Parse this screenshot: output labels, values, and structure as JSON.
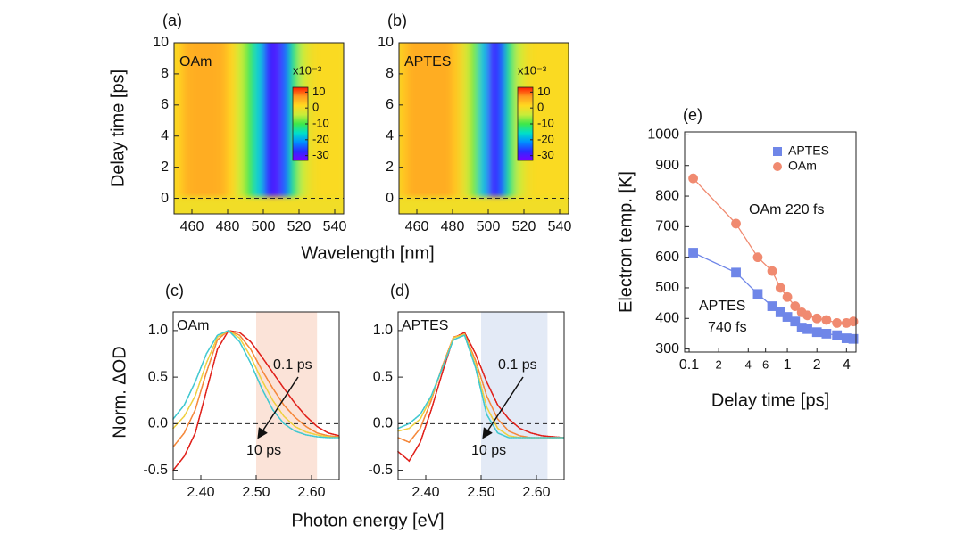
{
  "chart_data": [
    {
      "type": "heatmap",
      "panel": "(a)",
      "label": "OAm",
      "xlabel": "Wavelength [nm]",
      "ylabel": "Delay time [ps]",
      "x": [
        452.5,
        457.5,
        462.5,
        467.5,
        472.5,
        477.5,
        482.5,
        487.5,
        492.5,
        497.5,
        502.5,
        507.5,
        512.5,
        517.5,
        522.5,
        527.5,
        532.5,
        537.5,
        542.5
      ],
      "values": [
        2,
        5,
        5.5,
        5.5,
        5.5,
        5,
        2,
        -4,
        -10,
        -17,
        -27,
        -30,
        -24,
        -12,
        -4,
        0,
        1,
        1,
        1
      ],
      "xlim": [
        450,
        545
      ],
      "xticks": [
        460,
        480,
        500,
        520,
        540
      ],
      "ylim": [
        -1,
        10
      ],
      "yticks": [
        0,
        2,
        4,
        6,
        8,
        10
      ],
      "zlim": [
        -33,
        13
      ],
      "zticks": [
        10,
        0,
        -10,
        -20,
        -30
      ],
      "colorbar_unit": "x10⁻³",
      "colormap": [
        "#7a00ff",
        "#2b2bff",
        "#0090ff",
        "#00e0c8",
        "#3ee84a",
        "#c8ec3a",
        "#ffd820",
        "#ff9a20",
        "#ff1a00"
      ],
      "zero_line": true
    },
    {
      "type": "heatmap",
      "panel": "(b)",
      "label": "APTES",
      "x": [
        452.5,
        457.5,
        462.5,
        467.5,
        472.5,
        477.5,
        482.5,
        487.5,
        492.5,
        497.5,
        502.5,
        507.5,
        512.5,
        517.5,
        522.5,
        527.5,
        532.5,
        537.5,
        542.5
      ],
      "values": [
        3,
        5.5,
        5.5,
        5.5,
        5.5,
        5.5,
        3,
        -2,
        -8,
        -18,
        -29,
        -25,
        -12,
        -4,
        0,
        1,
        1,
        1,
        1
      ],
      "xlim": [
        450,
        545
      ],
      "xticks": [
        460,
        480,
        500,
        520,
        540
      ],
      "ylim": [
        -1,
        10
      ],
      "yticks": [
        0,
        2,
        4,
        6,
        8,
        10
      ],
      "zlim": [
        -33,
        13
      ],
      "zticks": [
        10,
        0,
        -10,
        -20,
        -30
      ],
      "colorbar_unit": "x10⁻³",
      "colormap": [
        "#7a00ff",
        "#2b2bff",
        "#0090ff",
        "#00e0c8",
        "#3ee84a",
        "#c8ec3a",
        "#ffd820",
        "#ff9a20",
        "#ff1a00"
      ],
      "zero_line": true
    },
    {
      "type": "line",
      "panel": "(c)",
      "label": "OAm",
      "xlabel": "Photon energy [eV]",
      "ylabel": "Norm. ΔOD",
      "x": [
        2.35,
        2.37,
        2.39,
        2.41,
        2.43,
        2.45,
        2.47,
        2.49,
        2.51,
        2.53,
        2.55,
        2.57,
        2.59,
        2.61,
        2.63,
        2.65
      ],
      "series": [
        {
          "color": "#e0201a",
          "values": [
            -0.5,
            -0.35,
            -0.1,
            0.35,
            0.8,
            1.0,
            0.98,
            0.88,
            0.72,
            0.55,
            0.38,
            0.22,
            0.08,
            -0.03,
            -0.1,
            -0.13
          ]
        },
        {
          "color": "#f5883a",
          "values": [
            -0.25,
            -0.1,
            0.15,
            0.55,
            0.9,
            1.0,
            0.95,
            0.8,
            0.58,
            0.38,
            0.2,
            0.07,
            -0.03,
            -0.1,
            -0.13,
            -0.14
          ]
        },
        {
          "color": "#f0d040",
          "values": [
            -0.05,
            0.08,
            0.3,
            0.65,
            0.93,
            1.0,
            0.92,
            0.72,
            0.47,
            0.25,
            0.08,
            -0.03,
            -0.09,
            -0.12,
            -0.14,
            -0.15
          ]
        },
        {
          "color": "#40c8d0",
          "values": [
            0.05,
            0.2,
            0.45,
            0.75,
            0.95,
            1.0,
            0.88,
            0.65,
            0.38,
            0.15,
            0.0,
            -0.08,
            -0.12,
            -0.14,
            -0.15,
            -0.15
          ]
        }
      ],
      "xlim": [
        2.35,
        2.65
      ],
      "xticks": [
        {
          "value": 2.4,
          "label": "2.40"
        },
        {
          "value": 2.5,
          "label": "2.50"
        },
        {
          "value": 2.6,
          "label": "2.60"
        }
      ],
      "ylim": [
        -0.6,
        1.2
      ],
      "yticks": [
        -0.5,
        {
          "value": 0,
          "label": "0.0"
        },
        0.5,
        {
          "value": 1,
          "label": "1.0"
        }
      ],
      "highlight": {
        "range": [
          2.5,
          2.61
        ],
        "color": "#fbe3d8"
      },
      "annotations": [
        "0.1 ps",
        "10 ps"
      ],
      "zero_line": true
    },
    {
      "type": "line",
      "panel": "(d)",
      "label": "APTES",
      "x": [
        2.35,
        2.37,
        2.39,
        2.41,
        2.43,
        2.45,
        2.47,
        2.49,
        2.51,
        2.53,
        2.55,
        2.57,
        2.59,
        2.61,
        2.63,
        2.65
      ],
      "series": [
        {
          "color": "#e0201a",
          "values": [
            -0.3,
            -0.4,
            -0.2,
            0.15,
            0.55,
            0.92,
            0.98,
            0.75,
            0.45,
            0.2,
            0.05,
            -0.05,
            -0.1,
            -0.13,
            -0.14,
            -0.15
          ]
        },
        {
          "color": "#f5883a",
          "values": [
            -0.15,
            -0.2,
            -0.05,
            0.25,
            0.62,
            0.93,
            0.96,
            0.68,
            0.3,
            0.05,
            -0.08,
            -0.13,
            -0.15,
            -0.15,
            -0.15,
            -0.15
          ]
        },
        {
          "color": "#f0d040",
          "values": [
            -0.08,
            -0.05,
            0.05,
            0.28,
            0.6,
            0.92,
            0.96,
            0.63,
            0.18,
            -0.05,
            -0.13,
            -0.15,
            -0.15,
            -0.15,
            -0.15,
            -0.15
          ]
        },
        {
          "color": "#40c8d0",
          "values": [
            -0.05,
            0.0,
            0.1,
            0.3,
            0.6,
            0.9,
            0.95,
            0.6,
            0.1,
            -0.1,
            -0.15,
            -0.15,
            -0.15,
            -0.15,
            -0.15,
            -0.15
          ]
        }
      ],
      "xlim": [
        2.35,
        2.65
      ],
      "xticks": [
        {
          "value": 2.4,
          "label": "2.40"
        },
        {
          "value": 2.5,
          "label": "2.50"
        },
        {
          "value": 2.6,
          "label": "2.60"
        }
      ],
      "ylim": [
        -0.6,
        1.2
      ],
      "yticks": [
        -0.5,
        {
          "value": 0,
          "label": "0.0"
        },
        0.5,
        {
          "value": 1,
          "label": "1.0"
        }
      ],
      "highlight": {
        "range": [
          2.5,
          2.62
        ],
        "color": "#e3eaf6"
      },
      "annotations": [
        "0.1 ps",
        "10 ps"
      ],
      "zero_line": true
    },
    {
      "type": "scatter",
      "panel": "(e)",
      "xlabel": "Delay time [ps]",
      "ylabel": "Electron temp. [K]",
      "log_x": true,
      "legend": "upper right",
      "series": [
        {
          "name": "APTES",
          "color": "#6f86e8",
          "marker": "square",
          "x": [
            0.11,
            0.3,
            0.5,
            0.7,
            0.85,
            1.0,
            1.2,
            1.4,
            1.6,
            2.0,
            2.5,
            3.2,
            4.0,
            4.7
          ],
          "values": [
            615,
            550,
            480,
            440,
            420,
            405,
            390,
            370,
            365,
            355,
            350,
            345,
            335,
            333
          ]
        },
        {
          "name": "OAm",
          "color": "#f08a70",
          "marker": "circle",
          "x": [
            0.11,
            0.3,
            0.5,
            0.7,
            0.85,
            1.0,
            1.2,
            1.4,
            1.6,
            2.0,
            2.5,
            3.2,
            4.0,
            4.7
          ],
          "values": [
            858,
            710,
            600,
            555,
            500,
            470,
            440,
            420,
            410,
            400,
            395,
            385,
            385,
            390
          ]
        }
      ],
      "xlim": [
        0.09,
        5
      ],
      "xticks": [
        0.1,
        {
          "value": 0.2,
          "label": "2"
        },
        {
          "value": 0.4,
          "label": "4"
        },
        {
          "value": 0.6,
          "label": "6"
        },
        1,
        2,
        4
      ],
      "ylim": [
        290,
        1010
      ],
      "yticks": [
        300,
        400,
        500,
        600,
        700,
        800,
        900,
        1000
      ],
      "annotations": [
        "OAm 220 fs",
        "APTES",
        "740 fs"
      ]
    }
  ]
}
